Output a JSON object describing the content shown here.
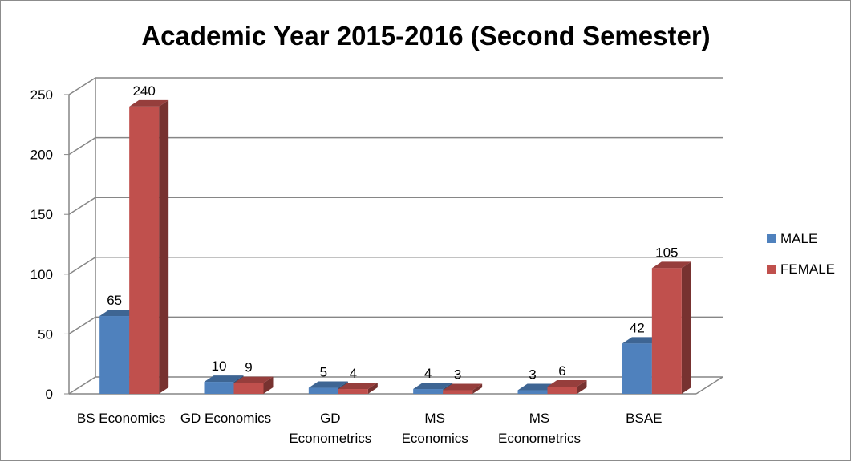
{
  "chart_data": {
    "type": "bar",
    "title": "Academic Year 2015-2016 (Second Semester)",
    "xlabel": "",
    "ylabel": "",
    "ylim": [
      0,
      250
    ],
    "yticks": [
      0,
      50,
      100,
      150,
      200,
      250
    ],
    "grid": true,
    "legend_position": "right",
    "categories": [
      [
        "BS Economics"
      ],
      [
        "GD Economics"
      ],
      [
        "GD",
        "Econometrics"
      ],
      [
        "MS",
        "Economics"
      ],
      [
        "MS",
        "Econometrics"
      ],
      [
        "BSAE"
      ]
    ],
    "series": [
      {
        "name": "MALE",
        "values": [
          65,
          10,
          5,
          4,
          3,
          42
        ],
        "color": "#4f81bd"
      },
      {
        "name": "FEMALE",
        "values": [
          240,
          9,
          4,
          3,
          6,
          105
        ],
        "color": "#c0504d"
      }
    ]
  }
}
